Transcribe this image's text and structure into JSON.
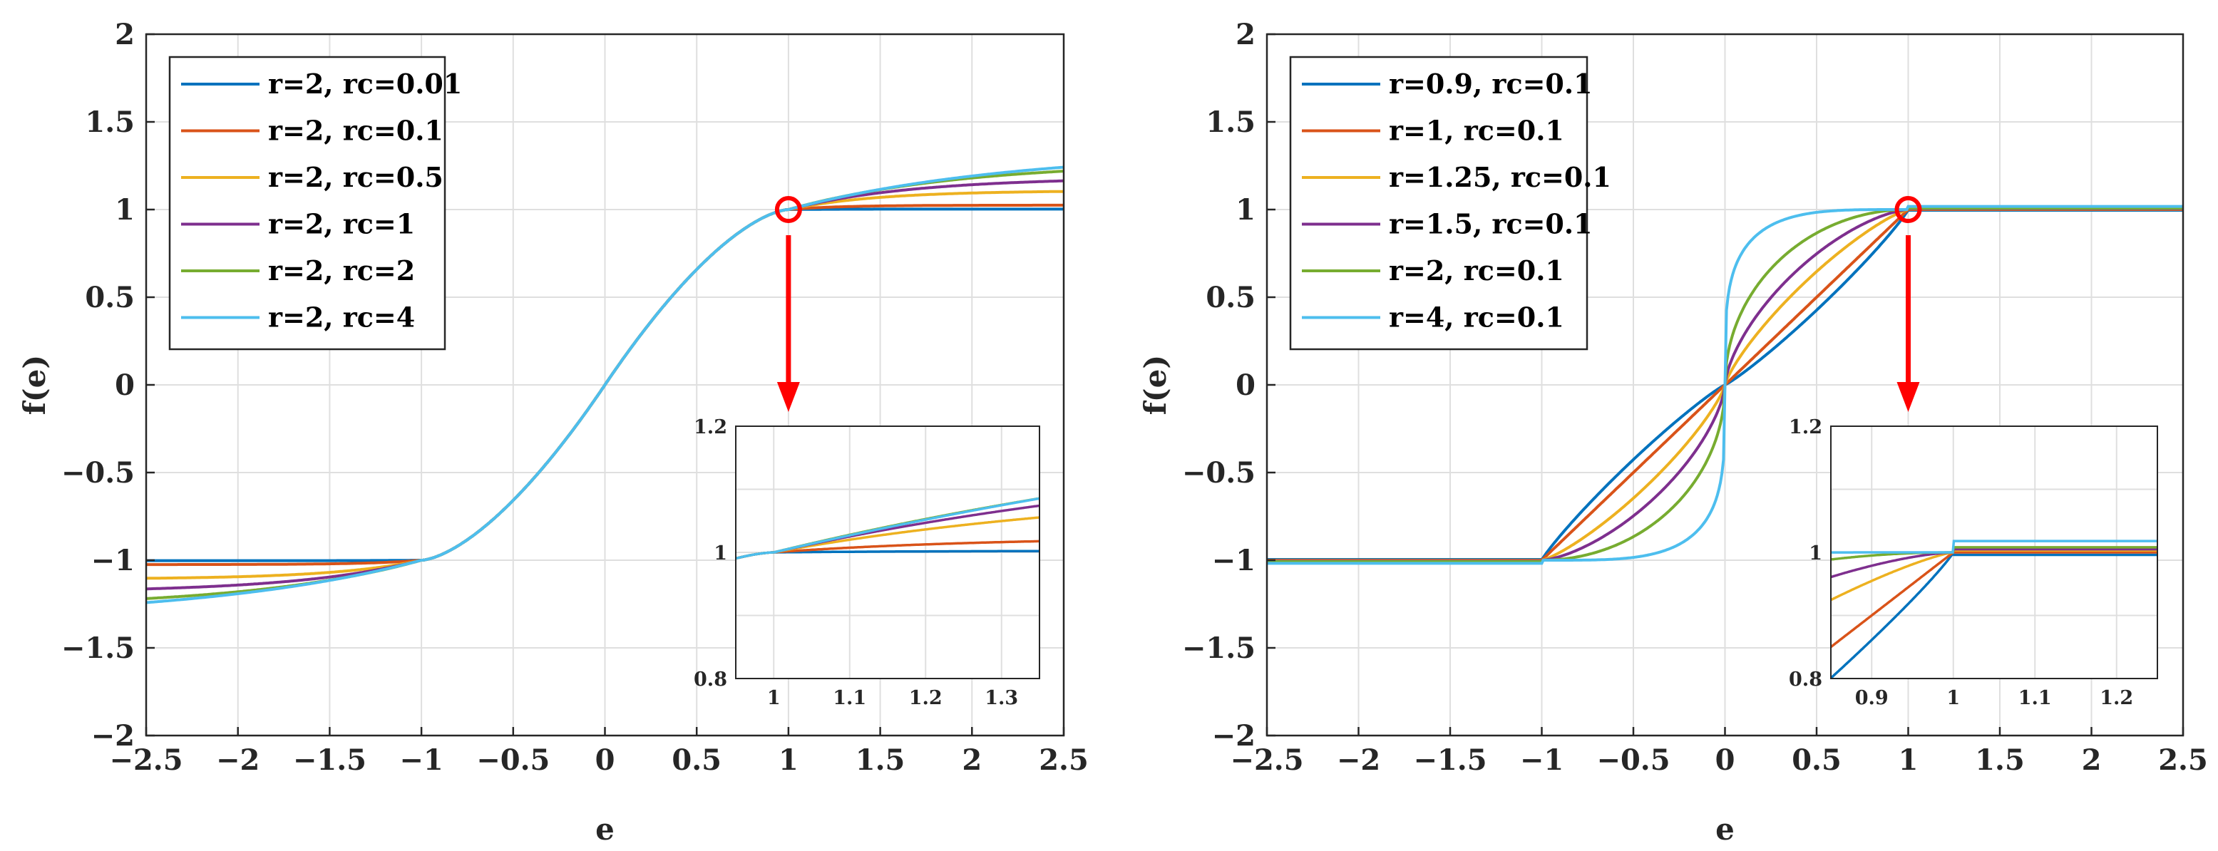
{
  "chart_data": [
    {
      "type": "line",
      "title": "",
      "xlabel": "e",
      "ylabel": "f(e)",
      "xlim": [
        -2.5,
        2.5
      ],
      "ylim": [
        -2,
        2
      ],
      "xticks": [
        "−2.5",
        "−2",
        "−1.5",
        "−1",
        "−0.5",
        "0",
        "0.5",
        "1",
        "1.5",
        "2",
        "2.5"
      ],
      "yticks": [
        "−2",
        "−1.5",
        "−1",
        "−0.5",
        "0",
        "0.5",
        "1",
        "1.5",
        "2"
      ],
      "grid": true,
      "legend_position": "top-left",
      "series": [
        {
          "name": "r=2, rc=0.01",
          "color": "#0072BD",
          "r": 2,
          "rc": 0.01
        },
        {
          "name": "r=2, rc=0.1",
          "color": "#D95319",
          "r": 2,
          "rc": 0.1
        },
        {
          "name": "r=2, rc=0.5",
          "color": "#EDB120",
          "r": 2,
          "rc": 0.5
        },
        {
          "name": "r=2, rc=1",
          "color": "#7E2F8E",
          "r": 2,
          "rc": 1
        },
        {
          "name": "r=2, rc=2",
          "color": "#77AC30",
          "r": 2,
          "rc": 2
        },
        {
          "name": "r=2, rc=4",
          "color": "#4DBEEE",
          "r": 2,
          "rc": 4
        }
      ],
      "marker": {
        "x": 1,
        "y": 1,
        "color": "#FF0000"
      },
      "inset": {
        "xlim": [
          0.95,
          1.35
        ],
        "ylim": [
          0.8,
          1.2
        ],
        "xticks": [
          "1",
          "1.1",
          "1.2",
          "1.3"
        ],
        "yticks": [
          "0.8",
          "1",
          "1.2"
        ]
      }
    },
    {
      "type": "line",
      "title": "",
      "xlabel": "e",
      "ylabel": "f(e)",
      "xlim": [
        -2.5,
        2.5
      ],
      "ylim": [
        -2,
        2
      ],
      "xticks": [
        "−2.5",
        "−2",
        "−1.5",
        "−1",
        "−0.5",
        "0",
        "0.5",
        "1",
        "1.5",
        "2",
        "2.5"
      ],
      "yticks": [
        "−2",
        "−1.5",
        "−1",
        "−0.5",
        "0",
        "0.5",
        "1",
        "1.5",
        "2"
      ],
      "grid": true,
      "legend_position": "top-left",
      "series": [
        {
          "name": "r=0.9, rc=0.1",
          "color": "#0072BD",
          "r": 0.9,
          "rc": 0.1
        },
        {
          "name": "r=1, rc=0.1",
          "color": "#D95319",
          "r": 1,
          "rc": 0.1
        },
        {
          "name": "r=1.25, rc=0.1",
          "color": "#EDB120",
          "r": 1.25,
          "rc": 0.1
        },
        {
          "name": "r=1.5, rc=0.1",
          "color": "#7E2F8E",
          "r": 1.5,
          "rc": 0.1
        },
        {
          "name": "r=2, rc=0.1",
          "color": "#77AC30",
          "r": 2,
          "rc": 0.1
        },
        {
          "name": "r=4, rc=0.1",
          "color": "#4DBEEE",
          "r": 4,
          "rc": 0.1
        }
      ],
      "marker": {
        "x": 1,
        "y": 1,
        "color": "#FF0000"
      },
      "inset": {
        "xlim": [
          0.85,
          1.25
        ],
        "ylim": [
          0.8,
          1.2
        ],
        "xticks": [
          "0.9",
          "1",
          "1.1",
          "1.2"
        ],
        "yticks": [
          "0.8",
          "1",
          "1.2"
        ]
      }
    }
  ]
}
